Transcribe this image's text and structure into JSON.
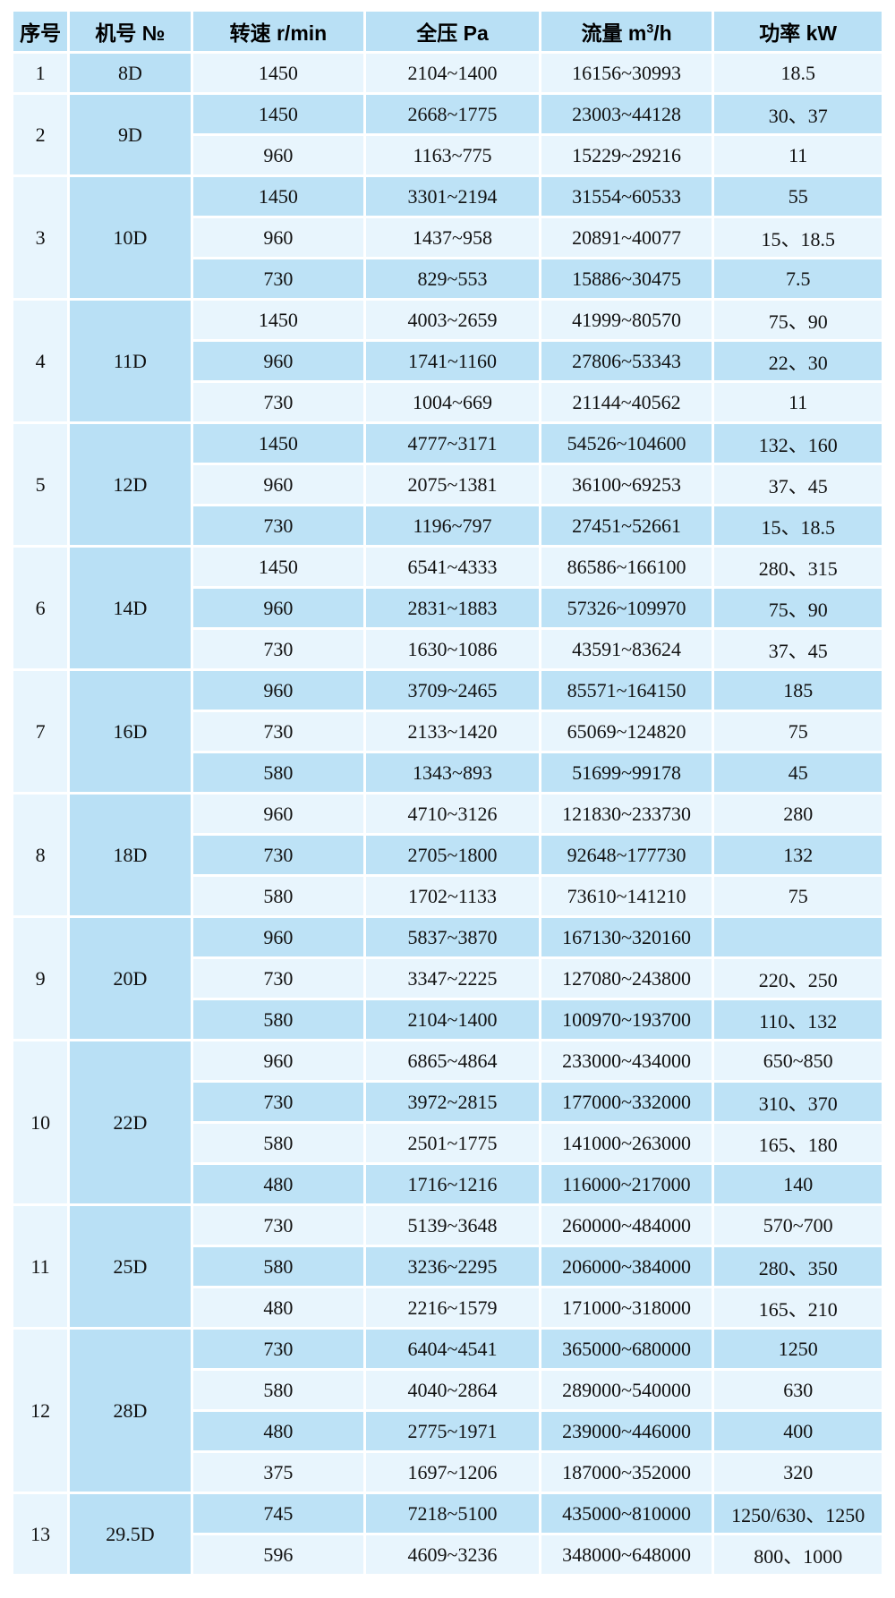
{
  "table": {
    "columns": [
      {
        "id": "index",
        "label": "序号"
      },
      {
        "id": "model",
        "label": "机号 №"
      },
      {
        "id": "speed",
        "label": "转速 r/min"
      },
      {
        "id": "pressure",
        "label": "全压 Pa"
      },
      {
        "id": "flow",
        "label_pre": "流量 m",
        "label_sup": "3",
        "label_post": "/h"
      },
      {
        "id": "power",
        "label": "功率 kW"
      }
    ],
    "colors": {
      "row_light": "#e8f5fd",
      "row_dark": "#bde2f6",
      "header": "#b9e0f5",
      "model_column": "#b9e0f5",
      "index_column": "#e8f5fd",
      "grid": "#ffffff",
      "text": "#111111"
    },
    "groups": [
      {
        "no": "1",
        "model": "8D",
        "rows": [
          {
            "speed": "1450",
            "pressure": "2104~1400",
            "flow": "16156~30993",
            "power": "18.5"
          }
        ]
      },
      {
        "no": "2",
        "model": "9D",
        "rows": [
          {
            "speed": "1450",
            "pressure": "2668~1775",
            "flow": "23003~44128",
            "power": "30、37"
          },
          {
            "speed": "960",
            "pressure": "1163~775",
            "flow": "15229~29216",
            "power": "11"
          }
        ]
      },
      {
        "no": "3",
        "model": "10D",
        "rows": [
          {
            "speed": "1450",
            "pressure": "3301~2194",
            "flow": "31554~60533",
            "power": "55"
          },
          {
            "speed": "960",
            "pressure": "1437~958",
            "flow": "20891~40077",
            "power": "15、18.5"
          },
          {
            "speed": "730",
            "pressure": "829~553",
            "flow": "15886~30475",
            "power": "7.5"
          }
        ]
      },
      {
        "no": "4",
        "model": "11D",
        "rows": [
          {
            "speed": "1450",
            "pressure": "4003~2659",
            "flow": "41999~80570",
            "power": "75、90"
          },
          {
            "speed": "960",
            "pressure": "1741~1160",
            "flow": "27806~53343",
            "power": "22、30"
          },
          {
            "speed": "730",
            "pressure": "1004~669",
            "flow": "21144~40562",
            "power": "11"
          }
        ]
      },
      {
        "no": "5",
        "model": "12D",
        "rows": [
          {
            "speed": "1450",
            "pressure": "4777~3171",
            "flow": "54526~104600",
            "power": "132、160"
          },
          {
            "speed": "960",
            "pressure": "2075~1381",
            "flow": "36100~69253",
            "power": "37、45"
          },
          {
            "speed": "730",
            "pressure": "1196~797",
            "flow": "27451~52661",
            "power": "15、18.5"
          }
        ]
      },
      {
        "no": "6",
        "model": "14D",
        "rows": [
          {
            "speed": "1450",
            "pressure": "6541~4333",
            "flow": "86586~166100",
            "power": "280、315"
          },
          {
            "speed": "960",
            "pressure": "2831~1883",
            "flow": "57326~109970",
            "power": "75、90"
          },
          {
            "speed": "730",
            "pressure": "1630~1086",
            "flow": "43591~83624",
            "power": "37、45"
          }
        ]
      },
      {
        "no": "7",
        "model": "16D",
        "rows": [
          {
            "speed": "960",
            "pressure": "3709~2465",
            "flow": "85571~164150",
            "power": "185"
          },
          {
            "speed": "730",
            "pressure": "2133~1420",
            "flow": "65069~124820",
            "power": "75"
          },
          {
            "speed": "580",
            "pressure": "1343~893",
            "flow": "51699~99178",
            "power": "45"
          }
        ]
      },
      {
        "no": "8",
        "model": "18D",
        "rows": [
          {
            "speed": "960",
            "pressure": "4710~3126",
            "flow": "121830~233730",
            "power": "280"
          },
          {
            "speed": "730",
            "pressure": "2705~1800",
            "flow": "92648~177730",
            "power": "132"
          },
          {
            "speed": "580",
            "pressure": "1702~1133",
            "flow": "73610~141210",
            "power": "75"
          }
        ]
      },
      {
        "no": "9",
        "model": "20D",
        "rows": [
          {
            "speed": "960",
            "pressure": "5837~3870",
            "flow": "167130~320160",
            "power": ""
          },
          {
            "speed": "730",
            "pressure": "3347~2225",
            "flow": "127080~243800",
            "power": "220、250"
          },
          {
            "speed": "580",
            "pressure": "2104~1400",
            "flow": "100970~193700",
            "power": "110、132"
          }
        ]
      },
      {
        "no": "10",
        "model": "22D",
        "rows": [
          {
            "speed": "960",
            "pressure": "6865~4864",
            "flow": "233000~434000",
            "power": "650~850"
          },
          {
            "speed": "730",
            "pressure": "3972~2815",
            "flow": "177000~332000",
            "power": "310、370"
          },
          {
            "speed": "580",
            "pressure": "2501~1775",
            "flow": "141000~263000",
            "power": "165、180"
          },
          {
            "speed": "480",
            "pressure": "1716~1216",
            "flow": "116000~217000",
            "power": "140"
          }
        ]
      },
      {
        "no": "11",
        "model": "25D",
        "rows": [
          {
            "speed": "730",
            "pressure": "5139~3648",
            "flow": "260000~484000",
            "power": "570~700"
          },
          {
            "speed": "580",
            "pressure": "3236~2295",
            "flow": "206000~384000",
            "power": "280、350"
          },
          {
            "speed": "480",
            "pressure": "2216~1579",
            "flow": "171000~318000",
            "power": "165、210"
          }
        ]
      },
      {
        "no": "12",
        "model": "28D",
        "rows": [
          {
            "speed": "730",
            "pressure": "6404~4541",
            "flow": "365000~680000",
            "power": "1250"
          },
          {
            "speed": "580",
            "pressure": "4040~2864",
            "flow": "289000~540000",
            "power": "630"
          },
          {
            "speed": "480",
            "pressure": "2775~1971",
            "flow": "239000~446000",
            "power": "400"
          },
          {
            "speed": "375",
            "pressure": "1697~1206",
            "flow": "187000~352000",
            "power": "320"
          }
        ]
      },
      {
        "no": "13",
        "model": "29.5D",
        "rows": [
          {
            "speed": "745",
            "pressure": "7218~5100",
            "flow": "435000~810000",
            "power": "1250/630、1250"
          },
          {
            "speed": "596",
            "pressure": "4609~3236",
            "flow": "348000~648000",
            "power": "800、1000"
          }
        ]
      }
    ]
  }
}
